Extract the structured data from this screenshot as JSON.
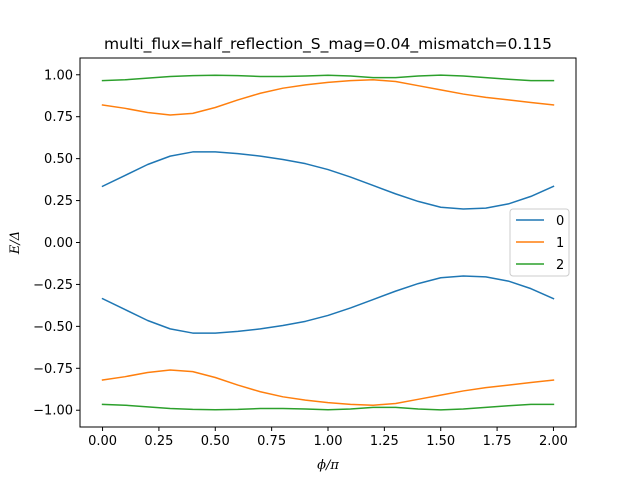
{
  "chart_data": {
    "type": "line",
    "title": "multi_flux=half_reflection_S_mag=0.04_mismatch=0.115",
    "xlabel": "ϕ/π",
    "ylabel": "E/Δ",
    "xlim": [
      -0.1,
      2.1
    ],
    "ylim": [
      -1.1,
      1.1
    ],
    "xticks": [
      0.0,
      0.25,
      0.5,
      0.75,
      1.0,
      1.25,
      1.5,
      1.75,
      2.0
    ],
    "xtick_labels": [
      "0.00",
      "0.25",
      "0.50",
      "0.75",
      "1.00",
      "1.25",
      "1.50",
      "1.75",
      "2.00"
    ],
    "yticks": [
      -1.0,
      -0.75,
      -0.5,
      -0.25,
      0.0,
      0.25,
      0.5,
      0.75,
      1.0
    ],
    "ytick_labels": [
      "−1.00",
      "−0.75",
      "−0.50",
      "−0.25",
      "0.00",
      "0.25",
      "0.50",
      "0.75",
      "1.00"
    ],
    "grid": false,
    "legend_position": "center-right",
    "x": [
      0.0,
      0.1,
      0.2,
      0.3,
      0.4,
      0.5,
      0.6,
      0.7,
      0.8,
      0.9,
      1.0,
      1.1,
      1.2,
      1.3,
      1.4,
      1.5,
      1.6,
      1.7,
      1.8,
      1.9,
      2.0
    ],
    "series": [
      {
        "name": "0",
        "color": "#1f77b4",
        "values": [
          0.335,
          0.4,
          0.465,
          0.515,
          0.54,
          0.54,
          0.53,
          0.515,
          0.495,
          0.47,
          0.435,
          0.39,
          0.34,
          0.29,
          0.245,
          0.21,
          0.2,
          0.205,
          0.23,
          0.275,
          0.335
        ]
      },
      {
        "name": "0",
        "color": "#1f77b4",
        "values": [
          -0.335,
          -0.4,
          -0.465,
          -0.515,
          -0.54,
          -0.54,
          -0.53,
          -0.515,
          -0.495,
          -0.47,
          -0.435,
          -0.39,
          -0.34,
          -0.29,
          -0.245,
          -0.21,
          -0.2,
          -0.205,
          -0.23,
          -0.275,
          -0.335
        ]
      },
      {
        "name": "1",
        "color": "#ff7f0e",
        "values": [
          0.82,
          0.8,
          0.775,
          0.76,
          0.77,
          0.805,
          0.85,
          0.89,
          0.92,
          0.94,
          0.955,
          0.965,
          0.97,
          0.96,
          0.935,
          0.91,
          0.885,
          0.865,
          0.85,
          0.835,
          0.82
        ]
      },
      {
        "name": "1",
        "color": "#ff7f0e",
        "values": [
          -0.82,
          -0.8,
          -0.775,
          -0.76,
          -0.77,
          -0.805,
          -0.85,
          -0.89,
          -0.92,
          -0.94,
          -0.955,
          -0.965,
          -0.97,
          -0.96,
          -0.935,
          -0.91,
          -0.885,
          -0.865,
          -0.85,
          -0.835,
          -0.82
        ]
      },
      {
        "name": "2",
        "color": "#2ca02c",
        "values": [
          0.965,
          0.97,
          0.98,
          0.99,
          0.995,
          0.997,
          0.995,
          0.99,
          0.99,
          0.993,
          0.997,
          0.993,
          0.983,
          0.983,
          0.993,
          0.998,
          0.993,
          0.983,
          0.973,
          0.965,
          0.965
        ]
      },
      {
        "name": "2",
        "color": "#2ca02c",
        "values": [
          -0.965,
          -0.97,
          -0.98,
          -0.99,
          -0.995,
          -0.997,
          -0.995,
          -0.99,
          -0.99,
          -0.993,
          -0.997,
          -0.993,
          -0.983,
          -0.983,
          -0.993,
          -0.998,
          -0.993,
          -0.983,
          -0.973,
          -0.965,
          -0.965
        ]
      }
    ],
    "legend": [
      {
        "label": "0",
        "color": "#1f77b4"
      },
      {
        "label": "1",
        "color": "#ff7f0e"
      },
      {
        "label": "2",
        "color": "#2ca02c"
      }
    ]
  }
}
